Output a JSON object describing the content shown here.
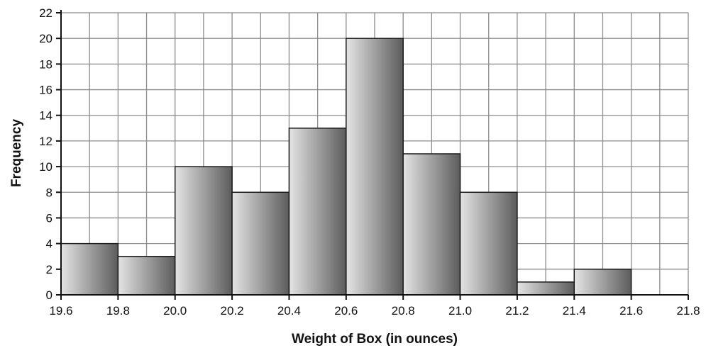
{
  "chart_data": {
    "type": "bar",
    "title": "",
    "xlabel": "Weight of Box (in ounces)",
    "ylabel": "Frequency",
    "bins": [
      {
        "start": 19.6,
        "end": 19.8,
        "value": 4
      },
      {
        "start": 19.8,
        "end": 20.0,
        "value": 3
      },
      {
        "start": 20.0,
        "end": 20.2,
        "value": 10
      },
      {
        "start": 20.2,
        "end": 20.4,
        "value": 8
      },
      {
        "start": 20.4,
        "end": 20.6,
        "value": 13
      },
      {
        "start": 20.6,
        "end": 20.8,
        "value": 20
      },
      {
        "start": 20.8,
        "end": 21.0,
        "value": 11
      },
      {
        "start": 21.0,
        "end": 21.2,
        "value": 8
      },
      {
        "start": 21.2,
        "end": 21.4,
        "value": 1
      },
      {
        "start": 21.4,
        "end": 21.6,
        "value": 2
      },
      {
        "start": 21.6,
        "end": 21.8,
        "value": 0
      }
    ],
    "xlim": [
      19.6,
      21.8
    ],
    "ylim": [
      0,
      22
    ],
    "x_ticks": [
      "19.6",
      "19.8",
      "20.0",
      "20.2",
      "20.4",
      "20.6",
      "20.8",
      "21.0",
      "21.2",
      "21.4",
      "21.6",
      "21.8"
    ],
    "y_ticks": [
      "0",
      "2",
      "4",
      "6",
      "8",
      "10",
      "12",
      "14",
      "16",
      "18",
      "20",
      "22"
    ],
    "grid": true,
    "bar_gradient": [
      "#e4e4e4",
      "#5c5c5c"
    ]
  }
}
